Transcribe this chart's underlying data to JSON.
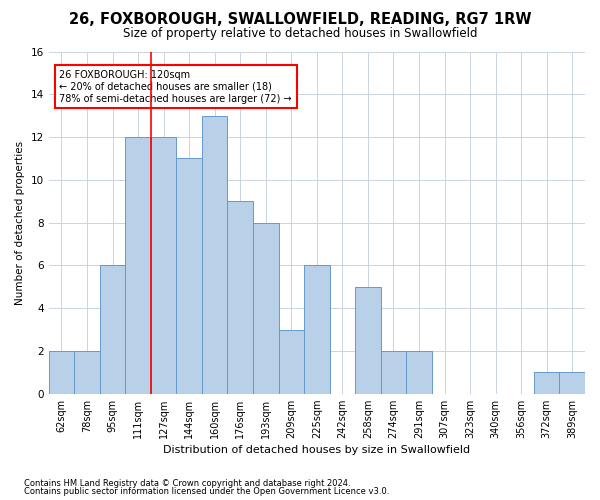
{
  "title1": "26, FOXBOROUGH, SWALLOWFIELD, READING, RG7 1RW",
  "title2": "Size of property relative to detached houses in Swallowfield",
  "xlabel": "Distribution of detached houses by size in Swallowfield",
  "ylabel": "Number of detached properties",
  "categories": [
    "62sqm",
    "78sqm",
    "95sqm",
    "111sqm",
    "127sqm",
    "144sqm",
    "160sqm",
    "176sqm",
    "193sqm",
    "209sqm",
    "225sqm",
    "242sqm",
    "258sqm",
    "274sqm",
    "291sqm",
    "307sqm",
    "323sqm",
    "340sqm",
    "356sqm",
    "372sqm",
    "389sqm"
  ],
  "values": [
    2,
    2,
    6,
    12,
    12,
    11,
    13,
    9,
    8,
    3,
    6,
    0,
    5,
    2,
    2,
    0,
    0,
    0,
    0,
    1,
    1
  ],
  "bar_color": "#b8d0e8",
  "bar_edge_color": "#6699cc",
  "red_line_x": 3.5,
  "annotation_title": "26 FOXBOROUGH: 120sqm",
  "annotation_line1": "← 20% of detached houses are smaller (18)",
  "annotation_line2": "78% of semi-detached houses are larger (72) →",
  "ylim": [
    0,
    16
  ],
  "yticks": [
    0,
    2,
    4,
    6,
    8,
    10,
    12,
    14,
    16
  ],
  "footnote1": "Contains HM Land Registry data © Crown copyright and database right 2024.",
  "footnote2": "Contains public sector information licensed under the Open Government Licence v3.0.",
  "background_color": "#ffffff",
  "grid_color": "#c8d4e0",
  "title1_fontsize": 10.5,
  "title2_fontsize": 8.5,
  "xlabel_fontsize": 8,
  "ylabel_fontsize": 7.5,
  "tick_fontsize": 7,
  "annotation_fontsize": 7,
  "footnote_fontsize": 6
}
